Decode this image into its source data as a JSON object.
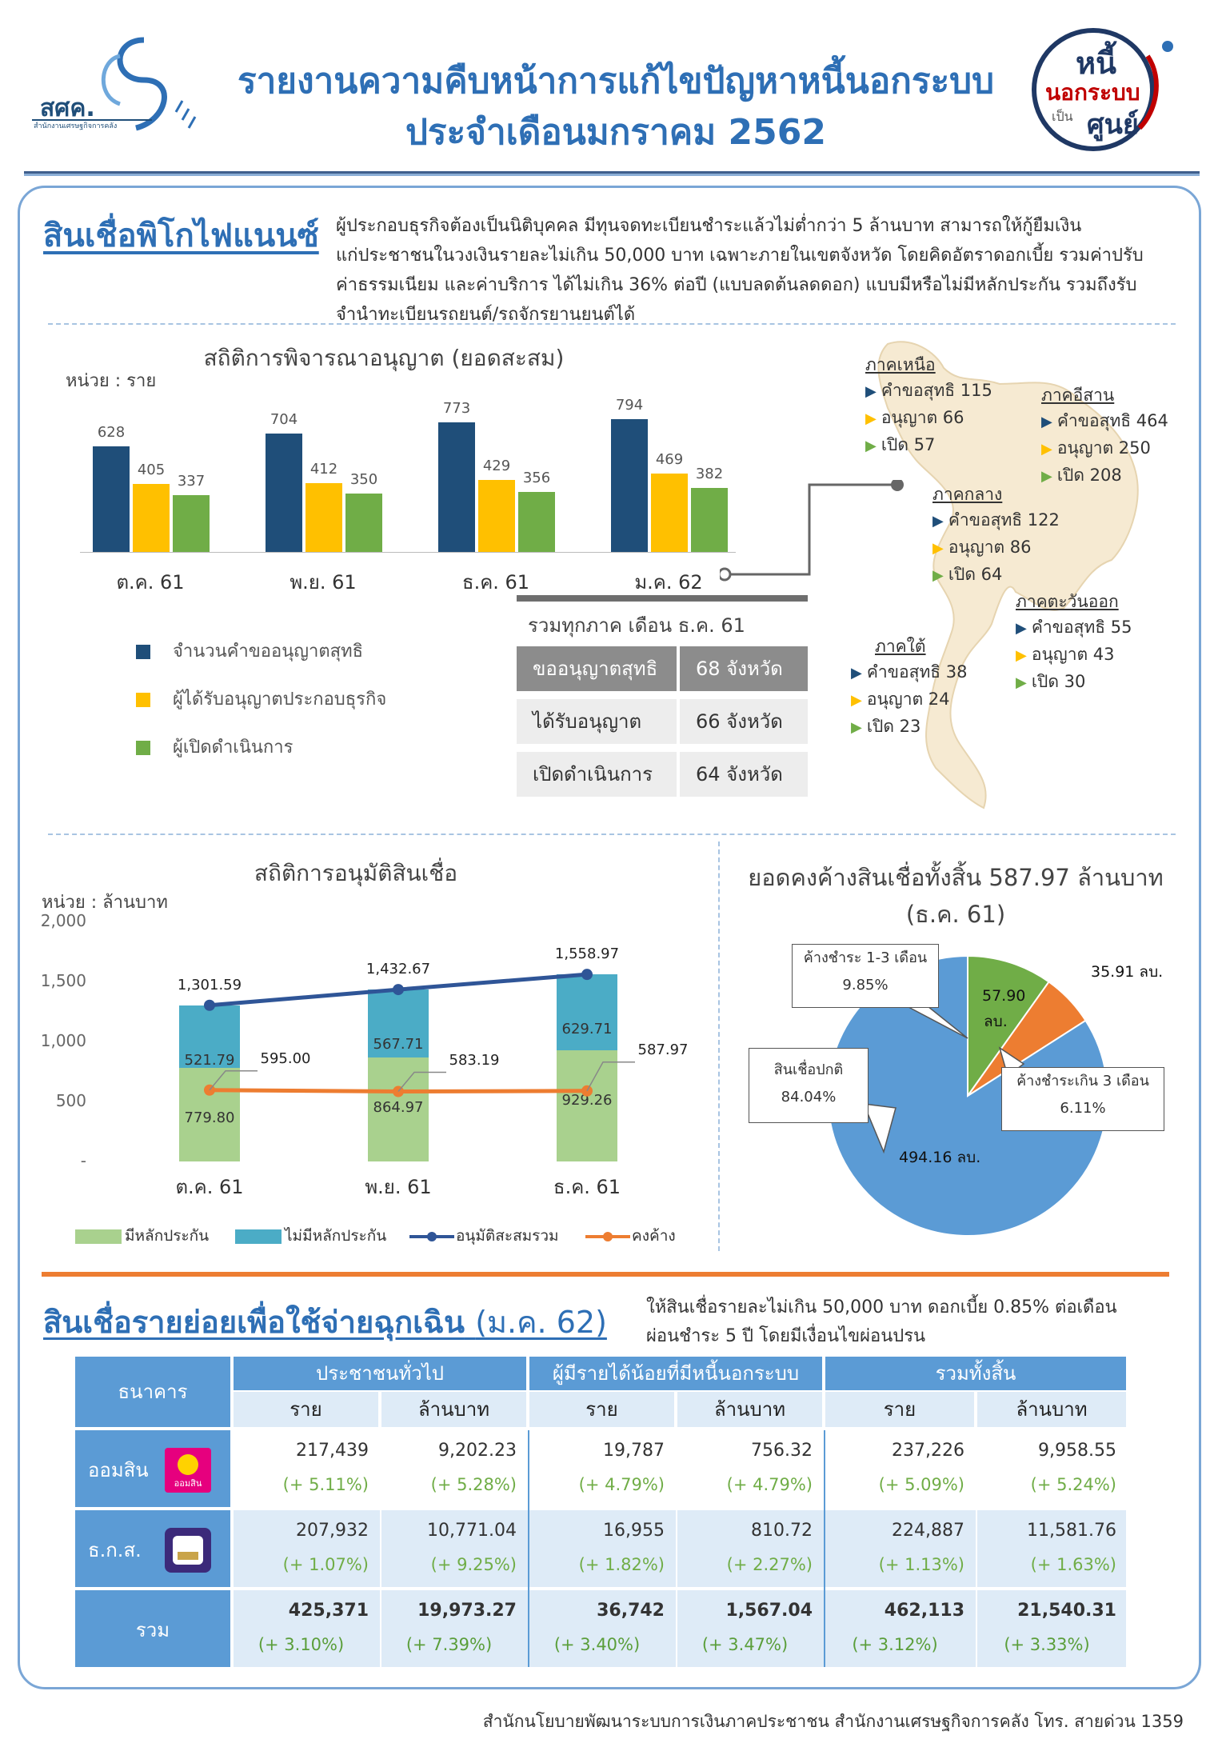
{
  "header": {
    "title_line1": "รายงานความคืบหน้าการแก้ไขปัญหาหนี้นอกระบบ",
    "title_line2": "ประจำเดือนมกราคม  2562",
    "left_logo_text": "สศค.",
    "left_logo_sub": "สำนักงานเศรษฐกิจการคลัง",
    "right_logo": {
      "line1": "หนี้",
      "line2": "นอกระบบ",
      "line3": "เป็น",
      "line4": "ศูนย์"
    }
  },
  "picofinance": {
    "title": "สินเชื่อพิโกไฟแนนซ์",
    "description": [
      "ผู้ประกอบธุรกิจต้องเป็นนิติบุคคล มีทุนจดทะเบียนชำระแล้วไม่ต่ำกว่า 5 ล้านบาท สามารถให้กู้ยืมเงิน",
      "แก่ประชาชนในวงเงินรายละไม่เกิน 50,000 บาท เฉพาะภายในเขตจังหวัด โดยคิดอัตราดอกเบี้ย รวมค่าปรับ",
      "ค่าธรรมเนียม และค่าบริการ ได้ไม่เกิน 36% ต่อปี (แบบลดต้นลดดอก) แบบมีหรือไม่มีหลักประกัน รวมถึงรับ",
      "จำนำทะเบียนรถยนต์/รถจักรยานยนต์ได้"
    ]
  },
  "license_chart": {
    "title": "สถิติการพิจารณาอนุญาต (ยอดสะสม)",
    "unit": "หน่วย : ราย",
    "colors": {
      "applications": "#1f4e79",
      "approved": "#ffc000",
      "opened": "#70ad47"
    },
    "categories": [
      "ต.ค. 61",
      "พ.ย. 61",
      "ธ.ค. 61",
      "ม.ค. 62"
    ],
    "series": [
      {
        "name": "จำนวนคำขออนุญาตสุทธิ",
        "values": [
          628,
          704,
          773,
          794
        ]
      },
      {
        "name": "ผู้ได้รับอนุญาตประกอบธุรกิจ",
        "values": [
          405,
          412,
          429,
          469
        ]
      },
      {
        "name": "ผู้เปิดดำเนินการ",
        "values": [
          337,
          350,
          356,
          382
        ]
      }
    ]
  },
  "summary_table": {
    "title": "รวมทุกภาค เดือน ธ.ค. 61",
    "rows": [
      {
        "label": "ขออนุญาตสุทธิ",
        "value": "68 จังหวัด"
      },
      {
        "label": "ได้รับอนุญาต",
        "value": "66 จังหวัด"
      },
      {
        "label": "เปิดดำเนินการ",
        "value": "64 จังหวัด"
      }
    ]
  },
  "regions": [
    {
      "name": "ภาคเหนือ",
      "net": "คำขอสุทธิ 115",
      "approved": "อนุญาต 66",
      "opened": "เปิด 57"
    },
    {
      "name": "ภาคอีสาน",
      "net": "คำขอสุทธิ 464",
      "approved": "อนุญาต 250",
      "opened": "เปิด 208"
    },
    {
      "name": "ภาคกลาง",
      "net": "คำขอสุทธิ 122",
      "approved": "อนุญาต 86",
      "opened": "เปิด 64"
    },
    {
      "name": "ภาคตะวันออก",
      "net": "คำขอสุทธิ 55",
      "approved": "อนุญาต 43",
      "opened": "เปิด 30"
    },
    {
      "name": "ภาคใต้",
      "net": "คำขอสุทธิ 38",
      "approved": "อนุญาต 24",
      "opened": "เปิด 23"
    }
  ],
  "loan_chart": {
    "title": "สถิติการอนุมัติสินเชื่อ",
    "unit": "หน่วย : ล้านบาท",
    "y_ticks": [
      "2,000",
      "1,500",
      "1,000",
      "500",
      "-"
    ],
    "ylim": [
      0,
      2000
    ],
    "categories": [
      "ต.ค. 61",
      "พ.ย. 61",
      "ธ.ค. 61"
    ],
    "secured": {
      "name": "มีหลักประกัน",
      "values": [
        779.8,
        864.97,
        929.26
      ],
      "labels": [
        "779.80",
        "864.97",
        "929.26"
      ],
      "color": "#a9d18e"
    },
    "unsecured": {
      "name": "ไม่มีหลักประกัน",
      "values": [
        521.79,
        567.71,
        629.71
      ],
      "labels": [
        "521.79",
        "567.71",
        "629.71"
      ],
      "color": "#4bacc6"
    },
    "cumulative": {
      "name": "อนุมัติสะสมรวม",
      "values": [
        1301.59,
        1432.67,
        1558.97
      ],
      "labels": [
        "1,301.59",
        "1,432.67",
        "1,558.97"
      ],
      "color": "#2f5597"
    },
    "outstanding": {
      "name": "คงค้าง",
      "values": [
        595.0,
        583.19,
        587.97
      ],
      "labels": [
        "595.00",
        "583.19",
        "587.97"
      ],
      "color": "#ed7d31"
    }
  },
  "pie_chart": {
    "title_line1": "ยอดคงค้างสินเชื่อทั้งสิ้น 587.97 ล้านบาท",
    "title_line2": "(ธ.ค. 61)",
    "slices": [
      {
        "name": "สินเชื่อปกติ",
        "pct_label": "84.04%",
        "value": 494.16,
        "value_label": "494.16  ลบ.",
        "color": "#5b9bd5"
      },
      {
        "name": "ค้างชำระ 1-3 เดือน",
        "pct_label": "9.85%",
        "value": 57.9,
        "value_label": "57.90",
        "value_unit": "ลบ.",
        "color": "#70ad47"
      },
      {
        "name": "ค้างชำระเกิน 3 เดือน",
        "pct_label": "6.11%",
        "value": 35.91,
        "value_label": "35.91  ลบ.",
        "color": "#ed7d31"
      }
    ]
  },
  "emergency": {
    "title": "สินเชื่อรายย่อยเพื่อใช้จ่ายฉุกเฉิน",
    "title_suffix": "(ม.ค. 62)",
    "description": [
      "ให้สินเชื่อรายละไม่เกิน 50,000 บาท ดอกเบี้ย 0.85% ต่อเดือน",
      "ผ่อนชำระ 5 ปี โดยมีเงื่อนไขผ่อนปรน"
    ],
    "table": {
      "bank_header": "ธนาคาร",
      "groups": [
        "ประชาชนทั่วไป",
        "ผู้มีรายได้น้อยที่มีหนี้นอกระบบ",
        "รวมทั้งสิ้น"
      ],
      "subheaders": [
        "ราย",
        "ล้านบาท",
        "ราย",
        "ล้านบาท",
        "ราย",
        "ล้านบาท"
      ],
      "rows": [
        {
          "bank": "ออมสิน",
          "logo_text": "ออมสิน",
          "values": [
            "217,439",
            "9,202.23",
            "19,787",
            "756.32",
            "237,226",
            "9,958.55"
          ],
          "pcts": [
            "(+ 5.11%)",
            "(+ 5.28%)",
            "(+ 4.79%)",
            "(+ 4.79%)",
            "(+ 5.09%)",
            "(+ 5.24%)"
          ]
        },
        {
          "bank": "ธ.ก.ส.",
          "values": [
            "207,932",
            "10,771.04",
            "16,955",
            "810.72",
            "224,887",
            "11,581.76"
          ],
          "pcts": [
            "(+ 1.07%)",
            "(+ 9.25%)",
            "(+ 1.82%)",
            "(+ 2.27%)",
            "(+ 1.13%)",
            "(+ 1.63%)"
          ]
        },
        {
          "bank": "รวม",
          "values": [
            "425,371",
            "19,973.27",
            "36,742",
            "1,567.04",
            "462,113",
            "21,540.31"
          ],
          "pcts": [
            "(+ 3.10%)",
            "(+ 7.39%)",
            "(+ 3.40%)",
            "(+ 3.47%)",
            "(+ 3.12%)",
            "(+ 3.33%)"
          ]
        }
      ]
    }
  },
  "footer": "สำนักนโยบายพัฒนาระบบการเงินภาคประชาชน สำนักงานเศรษฐกิจการคลัง โทร. สายด่วน 1359"
}
